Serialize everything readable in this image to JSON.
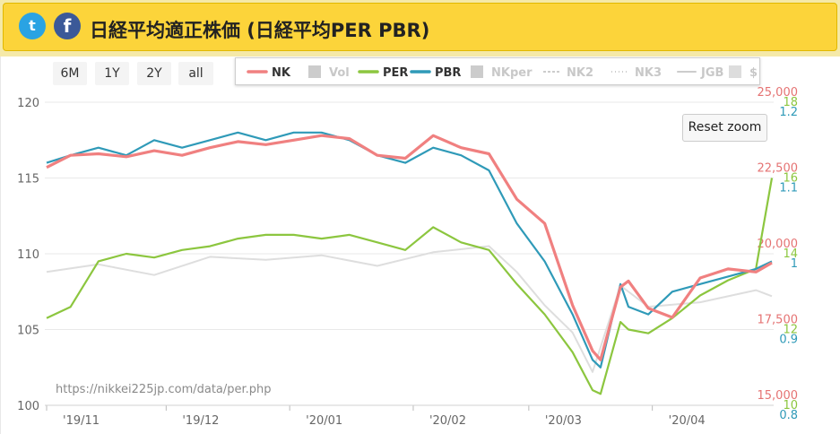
{
  "header": {
    "twitter_icon": "twitter-icon",
    "facebook_icon": "facebook-icon",
    "twitter_glyph": "t",
    "facebook_glyph": "f",
    "title": "日経平均適正株価 (日経平均PER PBR)",
    "bg_color": "#fcd43a"
  },
  "range_buttons": [
    "6M",
    "1Y",
    "2Y",
    "all"
  ],
  "reset_zoom": "Reset zoom",
  "credit": "https://nikkei225jp.com/data/per.php",
  "chart_data": {
    "type": "line",
    "grid": "horizontal",
    "legend_placement": "top-center",
    "x": {
      "labels": [
        "'19/11",
        "'19/12",
        "'20/01",
        "'20/02",
        "'20/03",
        "'20/04"
      ],
      "range": [
        "2019-11-01",
        "2020-05-01"
      ]
    },
    "axes": {
      "left": {
        "name": "PER",
        "ticks": [
          "100",
          "105",
          "110",
          "115",
          "120"
        ],
        "range": [
          100,
          120
        ]
      },
      "nk": {
        "name": "NK",
        "ticks": [
          "15,000",
          "17,500",
          "20,000",
          "22,500",
          "25,000"
        ],
        "range": [
          15000,
          25000
        ],
        "color": "#e57373"
      },
      "per": {
        "name": "PER",
        "ticks": [
          "10",
          "12",
          "14",
          "16",
          "18"
        ],
        "range": [
          10,
          18
        ],
        "color": "#8cc63f"
      },
      "pbr": {
        "name": "PBR",
        "ticks": [
          "0.8",
          "0.9",
          "1",
          "1.1",
          "1.2"
        ],
        "range": [
          0.8,
          1.2
        ],
        "color": "#2f9ab8"
      }
    },
    "legend": [
      {
        "name": "NK",
        "color": "#f08080",
        "active": true,
        "icon": "line"
      },
      {
        "name": "Vol",
        "color": "#cccccc",
        "active": false,
        "icon": "box"
      },
      {
        "name": "PER",
        "color": "#8cc63f",
        "active": true,
        "icon": "line"
      },
      {
        "name": "PBR",
        "color": "#2f9ab8",
        "active": true,
        "icon": "line"
      },
      {
        "name": "NKper",
        "color": "#cccccc",
        "active": false,
        "icon": "box"
      },
      {
        "name": "NK2",
        "color": "#cccccc",
        "active": false,
        "icon": "dash"
      },
      {
        "name": "NK3",
        "color": "#cccccc",
        "active": false,
        "icon": "dot"
      },
      {
        "name": "JGB",
        "color": "#cccccc",
        "active": false,
        "icon": "line"
      },
      {
        "name": "$",
        "color": "#dddddd",
        "active": false,
        "icon": "box"
      }
    ],
    "series": [
      {
        "name": "NK",
        "axis": "nk",
        "color": "#f08080",
        "x": [
          "2019-11-01",
          "2019-11-07",
          "2019-11-14",
          "2019-11-21",
          "2019-11-28",
          "2019-12-05",
          "2019-12-12",
          "2019-12-19",
          "2019-12-26",
          "2020-01-02",
          "2020-01-09",
          "2020-01-16",
          "2020-01-23",
          "2020-01-30",
          "2020-02-06",
          "2020-02-13",
          "2020-02-20",
          "2020-02-27",
          "2020-03-05",
          "2020-03-12",
          "2020-03-17",
          "2020-03-19",
          "2020-03-24",
          "2020-03-26",
          "2020-03-31",
          "2020-04-06",
          "2020-04-13",
          "2020-04-20",
          "2020-04-27",
          "2020-05-01"
        ],
        "values": [
          22850,
          23250,
          23300,
          23200,
          23400,
          23250,
          23500,
          23700,
          23600,
          23750,
          23900,
          23800,
          23250,
          23150,
          23900,
          23500,
          23300,
          21800,
          21000,
          18300,
          16800,
          16500,
          18900,
          19100,
          18200,
          17900,
          19200,
          19500,
          19400,
          19700
        ]
      },
      {
        "name": "PER",
        "axis": "per",
        "color": "#8cc63f",
        "x": [
          "2019-11-01",
          "2019-11-07",
          "2019-11-14",
          "2019-11-21",
          "2019-11-28",
          "2019-12-05",
          "2019-12-12",
          "2019-12-19",
          "2019-12-26",
          "2020-01-02",
          "2020-01-09",
          "2020-01-16",
          "2020-01-23",
          "2020-01-30",
          "2020-02-06",
          "2020-02-13",
          "2020-02-20",
          "2020-02-27",
          "2020-03-05",
          "2020-03-12",
          "2020-03-17",
          "2020-03-19",
          "2020-03-24",
          "2020-03-26",
          "2020-03-31",
          "2020-04-06",
          "2020-04-13",
          "2020-04-20",
          "2020-04-27",
          "2020-05-01"
        ],
        "values": [
          12.3,
          12.6,
          13.8,
          14.0,
          13.9,
          14.1,
          14.2,
          14.4,
          14.5,
          14.5,
          14.4,
          14.5,
          14.3,
          14.1,
          14.7,
          14.3,
          14.1,
          13.2,
          12.4,
          11.4,
          10.4,
          10.3,
          12.2,
          12.0,
          11.9,
          12.3,
          12.9,
          13.3,
          13.6,
          16.0
        ]
      },
      {
        "name": "PBR",
        "axis": "pbr",
        "color": "#2f9ab8",
        "x": [
          "2019-11-01",
          "2019-11-07",
          "2019-11-14",
          "2019-11-21",
          "2019-11-28",
          "2019-12-05",
          "2019-12-12",
          "2019-12-19",
          "2019-12-26",
          "2020-01-02",
          "2020-01-09",
          "2020-01-16",
          "2020-01-23",
          "2020-01-30",
          "2020-02-06",
          "2020-02-13",
          "2020-02-20",
          "2020-02-27",
          "2020-03-05",
          "2020-03-12",
          "2020-03-17",
          "2020-03-19",
          "2020-03-24",
          "2020-03-26",
          "2020-03-31",
          "2020-04-06",
          "2020-04-13",
          "2020-04-20",
          "2020-04-27",
          "2020-05-01"
        ],
        "values": [
          1.12,
          1.13,
          1.14,
          1.13,
          1.15,
          1.14,
          1.15,
          1.16,
          1.15,
          1.16,
          1.16,
          1.15,
          1.13,
          1.12,
          1.14,
          1.13,
          1.11,
          1.04,
          0.99,
          0.92,
          0.86,
          0.85,
          0.96,
          0.93,
          0.92,
          0.95,
          0.96,
          0.97,
          0.98,
          0.99
        ]
      },
      {
        "name": "NK2",
        "axis": "left",
        "color": "#dedede",
        "x": [
          "2019-11-01",
          "2019-11-14",
          "2019-11-28",
          "2019-12-12",
          "2019-12-26",
          "2020-01-09",
          "2020-01-23",
          "2020-02-06",
          "2020-02-20",
          "2020-02-27",
          "2020-03-05",
          "2020-03-12",
          "2020-03-17",
          "2020-03-24",
          "2020-03-31",
          "2020-04-13",
          "2020-04-27",
          "2020-05-01"
        ],
        "values": [
          108.8,
          109.3,
          108.6,
          109.8,
          109.6,
          109.9,
          109.2,
          110.1,
          110.5,
          108.8,
          106.6,
          104.8,
          102.2,
          107.9,
          106.5,
          106.8,
          107.6,
          107.2
        ]
      }
    ]
  }
}
